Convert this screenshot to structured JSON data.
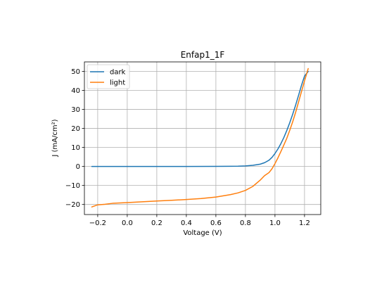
{
  "chart_data": {
    "type": "line",
    "title": "Enfap1_1F",
    "xlabel": "Voltage (V)",
    "ylabel": "J (mA/cm²)",
    "xlim": [
      -0.29,
      1.31
    ],
    "ylim": [
      -25.3,
      55.0
    ],
    "xticks": [
      -0.2,
      0.0,
      0.2,
      0.4,
      0.6,
      0.8,
      1.0,
      1.2
    ],
    "xtick_labels": [
      "−0.2",
      "0.0",
      "0.2",
      "0.4",
      "0.6",
      "0.8",
      "1.0",
      "1.2"
    ],
    "yticks": [
      -20,
      -10,
      0,
      10,
      20,
      30,
      40,
      50
    ],
    "ytick_labels": [
      "−20",
      "−10",
      "0",
      "10",
      "20",
      "30",
      "40",
      "50"
    ],
    "grid": true,
    "legend_position": "upper-left",
    "series": [
      {
        "name": "dark",
        "color": "#1f77b4",
        "x": [
          -0.24,
          0.0,
          0.2,
          0.4,
          0.6,
          0.7,
          0.75,
          0.8,
          0.85,
          0.9,
          0.93,
          0.96,
          0.98,
          1.0,
          1.02,
          1.04,
          1.06,
          1.08,
          1.1,
          1.12,
          1.14,
          1.16,
          1.18,
          1.2,
          1.225
        ],
        "y": [
          0,
          0,
          0,
          0,
          0.05,
          0.1,
          0.15,
          0.3,
          0.6,
          1.2,
          2.0,
          3.3,
          4.8,
          6.8,
          9.2,
          12.0,
          15.2,
          18.9,
          23.0,
          27.5,
          32.3,
          37.5,
          42.8,
          47.5,
          50.0
        ]
      },
      {
        "name": "light",
        "color": "#ff7f0e",
        "x": [
          -0.24,
          -0.2,
          -0.15,
          -0.1,
          0.0,
          0.1,
          0.2,
          0.3,
          0.4,
          0.5,
          0.6,
          0.7,
          0.75,
          0.8,
          0.85,
          0.9,
          0.93,
          0.96,
          0.98,
          1.0,
          1.02,
          1.05,
          1.08,
          1.1,
          1.12,
          1.14,
          1.16,
          1.18,
          1.2,
          1.225
        ],
        "y": [
          -21.3,
          -20.2,
          -19.9,
          -19.4,
          -19.0,
          -18.6,
          -18.2,
          -17.8,
          -17.4,
          -16.9,
          -16.1,
          -14.8,
          -13.9,
          -12.6,
          -10.5,
          -7.2,
          -4.8,
          -3.2,
          -1.2,
          1.5,
          4.5,
          9.5,
          14.8,
          19.0,
          23.5,
          28.5,
          34.0,
          39.5,
          45.0,
          51.5
        ]
      }
    ]
  }
}
